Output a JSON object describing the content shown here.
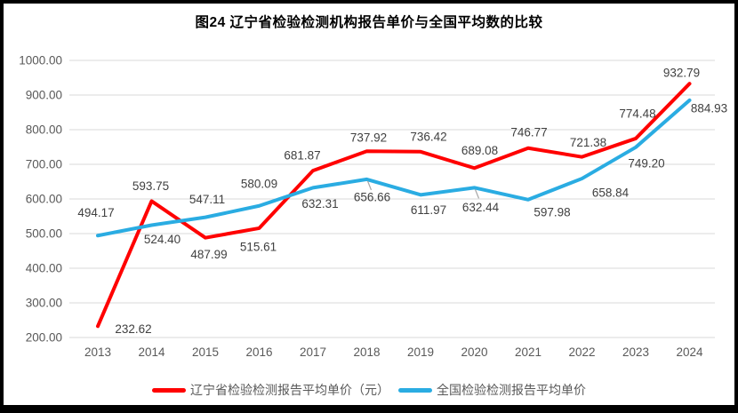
{
  "title": "图24 辽宁省检验检测机构报告单价与全国平均数的比较",
  "colors": {
    "liaoning_line": "#FF0000",
    "national_line": "#2AACE2",
    "gridline": "#D9D9D9",
    "axis_text": "#595959",
    "data_label_text": "#404040",
    "leader_line": "#A6A6A6",
    "frame_border": "#000000",
    "background": "#FFFFFF"
  },
  "legend": {
    "items": [
      {
        "label": "辽宁省检验检测报告平均单价（元）",
        "color": "#FF0000"
      },
      {
        "label": "全国检验检测报告平均单价",
        "color": "#2AACE2"
      }
    ]
  },
  "chart_data": {
    "type": "line",
    "title": "图24 辽宁省检验检测机构报告单价与全国平均数的比较",
    "categories": [
      "2013",
      "2014",
      "2015",
      "2016",
      "2017",
      "2018",
      "2019",
      "2020",
      "2021",
      "2022",
      "2023",
      "2024"
    ],
    "series": [
      {
        "name": "辽宁省检验检测报告平均单价（元）",
        "color": "#FF0000",
        "values": [
          232.62,
          593.75,
          487.99,
          515.61,
          681.87,
          737.92,
          736.42,
          689.08,
          746.77,
          721.38,
          774.48,
          932.79
        ],
        "label_offsets": [
          [
            40,
            3
          ],
          [
            -1,
            -17
          ],
          [
            4,
            19
          ],
          [
            -1,
            21
          ],
          [
            -12,
            -17
          ],
          [
            2,
            -15
          ],
          [
            9,
            -17
          ],
          [
            6,
            -20
          ],
          [
            1,
            -18
          ],
          [
            7,
            -16
          ],
          [
            2,
            -28
          ],
          [
            -9,
            -12
          ]
        ],
        "leader_indices": []
      },
      {
        "name": "全国检验检测报告平均单价",
        "color": "#2AACE2",
        "values": [
          494.17,
          524.4,
          547.11,
          580.09,
          632.31,
          656.66,
          611.97,
          632.44,
          597.98,
          658.84,
          749.2,
          884.93
        ],
        "label_offsets": [
          [
            -2,
            -26
          ],
          [
            12,
            16
          ],
          [
            2,
            -20
          ],
          [
            0,
            -25
          ],
          [
            8,
            18
          ],
          [
            6,
            20
          ],
          [
            9,
            17
          ],
          [
            7,
            22
          ],
          [
            27,
            14
          ],
          [
            32,
            16
          ],
          [
            12,
            18
          ],
          [
            22,
            9
          ]
        ],
        "leader_indices": [
          5,
          7
        ]
      }
    ],
    "ylabel": "",
    "xlabel": "",
    "ylim": [
      200,
      1000
    ],
    "ytick_step": 100,
    "value_decimals": 2,
    "grid": "horizontal",
    "legend_position": "bottom"
  }
}
